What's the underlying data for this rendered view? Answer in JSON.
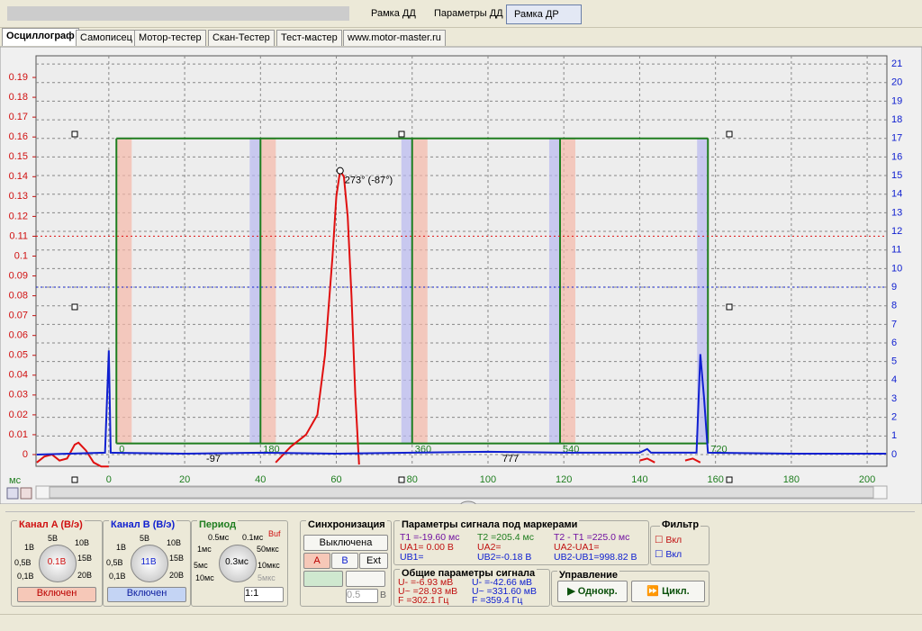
{
  "toolbar": {
    "buttons": [
      "Рамка ДД",
      "Параметры ДД",
      "Рамка ДР"
    ]
  },
  "tabs": [
    "Осциллограф",
    "Самописец",
    "Мотор-тестер",
    "Скан-Тестер",
    "Тест-мастер",
    "www.motor-master.ru"
  ],
  "chart_data": {
    "type": "line",
    "x_unit": "мс",
    "xlim": [
      -19.2,
      205.2
    ],
    "xticks": [
      0,
      20,
      40,
      60,
      80,
      100,
      120,
      140,
      160,
      180,
      200
    ],
    "ylim": [
      -0.0059,
      0.2009
    ],
    "yticks": [
      0,
      0.01,
      0.02,
      0.03,
      0.04,
      0.05,
      0.06,
      0.07,
      0.08,
      0.09,
      0.1,
      0.11,
      0.12,
      0.13,
      0.14,
      0.15,
      0.16,
      0.17,
      0.18,
      0.19
    ],
    "y2lim": [
      -0.63,
      21.44
    ],
    "y2ticks": [
      0,
      1,
      2,
      3,
      4,
      5,
      6,
      7,
      8,
      9,
      10,
      11,
      12,
      13,
      14,
      15,
      16,
      17,
      18,
      19,
      20,
      21
    ],
    "grid": true,
    "series": [
      {
        "name": "Канал A",
        "color": "#e01010",
        "axis": "y",
        "x": [
          -19,
          -17,
          -15,
          -13,
          -11,
          -9,
          -8,
          -6,
          -4,
          -2,
          0,
          null,
          44,
          48,
          52,
          55,
          57,
          59,
          60,
          61,
          62,
          63,
          64,
          65,
          66,
          null,
          140,
          142,
          144,
          null,
          152,
          154,
          156
        ],
        "values": [
          -0.004,
          -0.001,
          0.0,
          -0.003,
          -0.002,
          0.005,
          0.006,
          0.002,
          -0.004,
          -0.006,
          -0.006,
          null,
          -0.004,
          0.004,
          0.01,
          0.02,
          0.05,
          0.1,
          0.13,
          0.143,
          0.14,
          0.12,
          0.08,
          0.03,
          -0.005,
          null,
          -0.003,
          -0.002,
          -0.004,
          null,
          -0.003,
          -0.002,
          -0.004
        ]
      },
      {
        "name": "Канал B",
        "color": "#1020d0",
        "axis": "y2",
        "x": [
          -19,
          -1,
          0,
          0.5,
          20,
          40,
          60,
          80,
          100,
          120,
          140,
          142,
          143,
          155,
          156,
          157,
          158,
          180,
          205
        ],
        "values": [
          0.0,
          0.1,
          5.6,
          0.1,
          0.05,
          0.1,
          0.05,
          0.1,
          0.15,
          0.1,
          0.1,
          0.3,
          0.1,
          0.1,
          5.4,
          3.0,
          0.1,
          0.05,
          0.05
        ]
      }
    ],
    "hlines": [
      {
        "value": 0.11,
        "axis": "y",
        "color": "#e01010"
      },
      {
        "value": 9,
        "axis": "y2",
        "color": "#1020d0"
      }
    ],
    "frame": {
      "color": "#1e7d1e",
      "x": [
        2,
        40,
        80,
        119,
        158
      ],
      "top": 17,
      "bottom": 0.6,
      "labels": [
        "0",
        "180",
        "360",
        "540",
        "720"
      ]
    },
    "annotation": {
      "text": "273° (-87°)",
      "x": 61,
      "y": 0.143
    },
    "marker_texts": [
      "-97",
      "777"
    ]
  },
  "panels": {
    "channel_a": {
      "title": "Канал A (В/э)",
      "scale": [
        "5В",
        "10В",
        "1В",
        "15В",
        "0,5В",
        "20В",
        "0,1В"
      ],
      "value": "0.1В",
      "button": "Включен"
    },
    "channel_b": {
      "title": "Канал B (В/э)",
      "scale": [
        "5В",
        "10В",
        "1В",
        "15В",
        "0,5В",
        "20В",
        "0,1В"
      ],
      "value": "11В",
      "button": "Включен"
    },
    "period": {
      "title": "Период",
      "scale": [
        "0.5мс",
        "0.1мс",
        "1мс",
        "50мкс",
        "5мс",
        "10мкс",
        "10мс",
        "5мкс"
      ],
      "buf": "Buf",
      "value": "0.3мс",
      "zoom": "1:1"
    },
    "sync": {
      "title": "Синхронизация",
      "state": "Выключена",
      "sources": [
        "A",
        "B",
        "Ext"
      ],
      "level": "0.5",
      "unit": "В"
    },
    "marker_params": {
      "title": "Параметры сигнала под маркерами",
      "rows": [
        [
          "T1 =-19.60 мс",
          "UA1= 0.00 В",
          "UB1="
        ],
        [
          "T2 =205.4 мс",
          "UA2=",
          "UB2=-0.18 B"
        ],
        [
          "T2 - T1 =225.0 мс",
          "UA2-UA1=",
          "UB2-UB1=998.82 В"
        ]
      ]
    },
    "general_params": {
      "title": "Общие параметры сигнала",
      "rows": [
        [
          "U- =-6.93 мВ",
          "U~ =28.93 мВ",
          "F =302.1 Гц"
        ],
        [
          "U- =-42.66 мВ",
          "U~ =331.60 мВ",
          "F =359.4 Гц"
        ]
      ]
    },
    "filter": {
      "title": "Фильтр",
      "items": [
        "Вкл",
        "Вкл"
      ]
    },
    "control": {
      "title": "Управление",
      "buttons": [
        "Однокр.",
        "Цикл."
      ]
    }
  }
}
